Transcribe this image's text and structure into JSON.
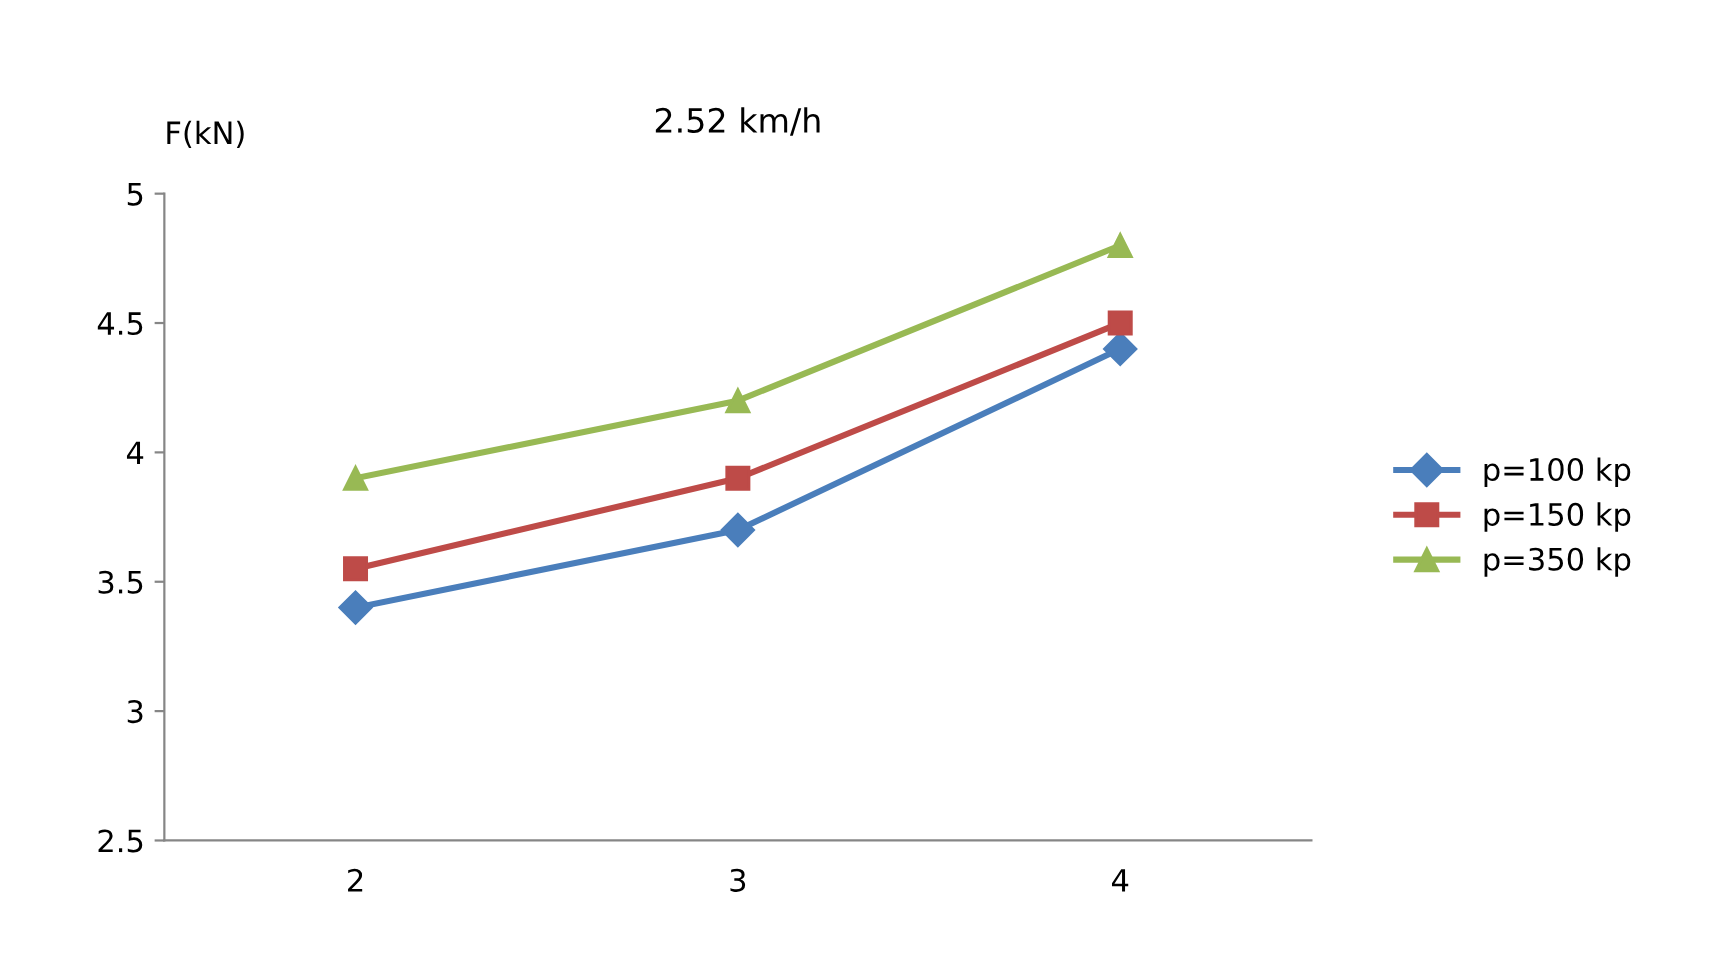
{
  "chart_data": {
    "type": "line",
    "title": "2.52 km/h",
    "ylabel": "F(kN)",
    "categories": [
      "2",
      "3",
      "4"
    ],
    "series": [
      {
        "name": "p=100 kp",
        "color": "#4a7ebb",
        "marker": "diamond",
        "values": [
          3.4,
          3.7,
          4.4
        ]
      },
      {
        "name": "p=150 kp",
        "color": "#be4b48",
        "marker": "square",
        "values": [
          3.55,
          3.9,
          4.5
        ]
      },
      {
        "name": "p=350 kp",
        "color": "#98b954",
        "marker": "triangle",
        "values": [
          3.9,
          4.2,
          4.8
        ]
      }
    ],
    "ylim": [
      2.5,
      5
    ],
    "yticks": [
      2.5,
      3,
      3.5,
      4,
      4.5,
      5
    ],
    "grid": false,
    "legend": "right",
    "line_style": "solid"
  }
}
